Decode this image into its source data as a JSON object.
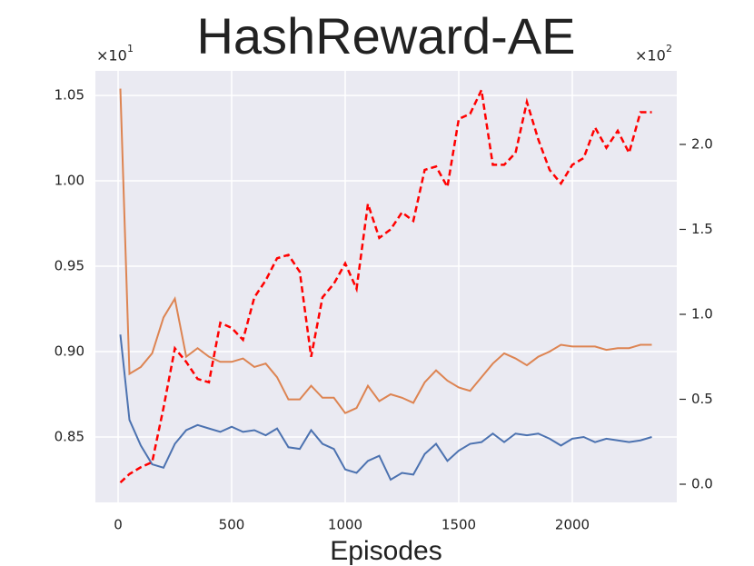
{
  "chart_data": {
    "type": "line",
    "title": "HashReward-AE",
    "x_label": "Episodes",
    "y_multiplier": "×10",
    "y_multiplier_exp": "1",
    "y2_multiplier": "×10",
    "y2_multiplier_exp": "2",
    "x": [
      10,
      50,
      100,
      150,
      200,
      250,
      300,
      350,
      400,
      450,
      500,
      550,
      600,
      650,
      700,
      750,
      800,
      850,
      900,
      950,
      1000,
      1050,
      1100,
      1150,
      1200,
      1250,
      1300,
      1350,
      1400,
      1450,
      1500,
      1550,
      1600,
      1650,
      1700,
      1750,
      1800,
      1850,
      1900,
      1950,
      2000,
      2050,
      2100,
      2150,
      2200,
      2250,
      2300,
      2350
    ],
    "xlim": [
      -100,
      2460
    ],
    "xticks": [
      0,
      500,
      1000,
      1500,
      2000
    ],
    "ylim": [
      0.8117,
      1.0644
    ],
    "yticks": [
      {
        "value": 0.85,
        "label": "0.85"
      },
      {
        "value": 0.9,
        "label": "0.90"
      },
      {
        "value": 0.95,
        "label": "0.95"
      },
      {
        "value": 1.0,
        "label": "1.00"
      },
      {
        "value": 1.05,
        "label": "1.05"
      }
    ],
    "y2lim": [
      -0.107,
      2.433
    ],
    "y2ticks": [
      {
        "value": 0,
        "label": "0.0"
      },
      {
        "value": 0.5,
        "label": "0.5"
      },
      {
        "value": 1.0,
        "label": "1.0"
      },
      {
        "value": 1.5,
        "label": "1.5"
      },
      {
        "value": 2.0,
        "label": "2.0"
      }
    ],
    "grid": true,
    "series": [
      {
        "color": "#4c72b0",
        "values": [
          0.91,
          0.86,
          0.845,
          0.834,
          0.832,
          0.846,
          0.854,
          0.857,
          0.855,
          0.853,
          0.856,
          0.853,
          0.854,
          0.851,
          0.855,
          0.844,
          0.843,
          0.854,
          0.846,
          0.843,
          0.831,
          0.829,
          0.836,
          0.839,
          0.825,
          0.829,
          0.828,
          0.84,
          0.846,
          0.836,
          0.842,
          0.846,
          0.847,
          0.852,
          0.847,
          0.852,
          0.851,
          0.852,
          0.849,
          0.845,
          0.849,
          0.85,
          0.847,
          0.849,
          0.848,
          0.847,
          0.848,
          0.85
        ]
      },
      {
        "color": "#dd8452",
        "values": [
          1.054,
          0.887,
          0.891,
          0.899,
          0.92,
          0.931,
          0.897,
          0.902,
          0.897,
          0.894,
          0.894,
          0.896,
          0.891,
          0.893,
          0.885,
          0.872,
          0.872,
          0.88,
          0.873,
          0.873,
          0.864,
          0.867,
          0.88,
          0.871,
          0.875,
          0.873,
          0.87,
          0.882,
          0.889,
          0.883,
          0.879,
          0.877,
          0.885,
          0.893,
          0.899,
          0.896,
          0.892,
          0.897,
          0.9,
          0.904,
          0.903,
          0.903,
          0.903,
          0.901,
          0.902,
          0.902,
          0.904,
          0.904
        ]
      },
      {
        "color": "#ff0000",
        "dashed": true,
        "axis": "y2",
        "values": [
          0.01,
          0.06,
          0.1,
          0.13,
          0.45,
          0.8,
          0.72,
          0.62,
          0.6,
          0.95,
          0.92,
          0.85,
          1.1,
          1.2,
          1.33,
          1.35,
          1.25,
          0.75,
          1.1,
          1.18,
          1.3,
          1.15,
          1.65,
          1.45,
          1.5,
          1.6,
          1.55,
          1.85,
          1.87,
          1.75,
          2.15,
          2.18,
          2.32,
          1.88,
          1.88,
          1.95,
          2.25,
          2.03,
          1.85,
          1.77,
          1.88,
          1.92,
          2.1,
          1.98,
          2.08,
          1.95,
          2.19,
          2.19
        ]
      }
    ]
  }
}
